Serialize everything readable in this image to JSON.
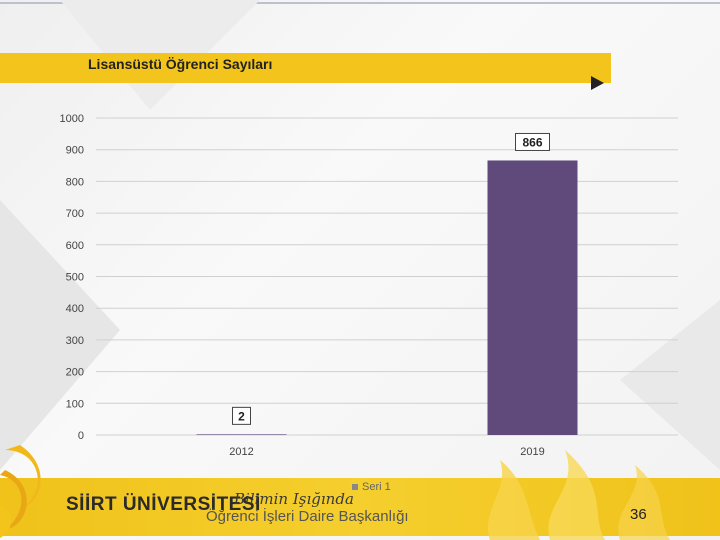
{
  "slide": {
    "title": "Lisansüstü Öğrenci Sayıları",
    "brand": "SİİRT ÜNİVERSİTESİ",
    "tagline": "Bilimin Işığında",
    "department": "Öğrenci İşleri Daire Başkanlığı",
    "page_number": "36"
  },
  "colors": {
    "accent_yellow": "#f2c41c",
    "bar": "#604a7b",
    "gridline": "#d0d0d0",
    "axis_text": "#444444"
  },
  "icons": [
    "play-icon",
    "swirl-logo-icon",
    "flame-decoration-icon"
  ],
  "chart_data": {
    "type": "bar",
    "categories": [
      "2012",
      "2019"
    ],
    "series": [
      {
        "name": "Seri 1",
        "values": [
          2,
          866
        ]
      }
    ],
    "data_labels": [
      "2",
      "866"
    ],
    "title": "",
    "xlabel": "",
    "ylabel": "",
    "ylim": [
      0,
      1000
    ],
    "yticks": [
      0,
      100,
      200,
      300,
      400,
      500,
      600,
      700,
      800,
      900,
      1000
    ],
    "grid": true,
    "legend": "bottom"
  }
}
